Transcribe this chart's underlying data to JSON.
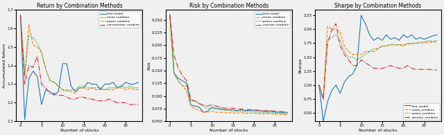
{
  "title1": "Return by Combination Methods",
  "title2": "Risk by Combination Methods",
  "title3": "Sharpe by Combination Methods",
  "xlabel": "Number of stocks",
  "ylabel1": "Accumulated Return",
  "ylabel2": "Risk",
  "ylabel3": "Sharpe",
  "legend1": [
    "first model",
    "mean combine",
    "power combine",
    "concatenate combine"
  ],
  "legend2": [
    "first model",
    "mean combine",
    "power combine",
    "concate combine"
  ],
  "legend3": [
    "first_model",
    "mean_combine",
    "power_combine",
    "concate_combine"
  ],
  "colors": [
    "#1f77b4",
    "#ff7f0e",
    "#2ca02c",
    "#d62728"
  ],
  "x": [
    0,
    1,
    2,
    3,
    4,
    5,
    6,
    7,
    8,
    9,
    10,
    11,
    12,
    13,
    14,
    15,
    16,
    17,
    18,
    19,
    20,
    21,
    22,
    23,
    24,
    25,
    26,
    27,
    28
  ],
  "return_first": [
    1.67,
    1.11,
    1.33,
    1.37,
    1.34,
    1.19,
    1.27,
    1.26,
    1.24,
    1.26,
    1.41,
    1.41,
    1.29,
    1.26,
    1.28,
    1.28,
    1.31,
    1.3,
    1.3,
    1.27,
    1.3,
    1.3,
    1.31,
    1.28,
    1.29,
    1.31,
    1.3,
    1.3,
    1.31
  ],
  "return_mean": [
    1.67,
    1.35,
    1.62,
    1.51,
    1.5,
    1.47,
    1.38,
    1.32,
    1.31,
    1.29,
    1.27,
    1.27,
    1.26,
    1.25,
    1.28,
    1.28,
    1.27,
    1.28,
    1.27,
    1.27,
    1.27,
    1.27,
    1.27,
    1.28,
    1.28,
    1.27,
    1.28,
    1.27,
    1.27
  ],
  "return_power": [
    1.67,
    1.35,
    1.56,
    1.55,
    1.52,
    1.47,
    1.38,
    1.32,
    1.31,
    1.29,
    1.27,
    1.26,
    1.27,
    1.27,
    1.29,
    1.29,
    1.28,
    1.28,
    1.28,
    1.28,
    1.27,
    1.28,
    1.28,
    1.28,
    1.29,
    1.28,
    1.29,
    1.28,
    1.28
  ],
  "return_concat": [
    1.67,
    1.3,
    1.4,
    1.39,
    1.45,
    1.3,
    1.28,
    1.25,
    1.25,
    1.24,
    1.24,
    1.23,
    1.22,
    1.22,
    1.23,
    1.23,
    1.22,
    1.22,
    1.21,
    1.21,
    1.21,
    1.22,
    1.21,
    1.2,
    1.2,
    1.2,
    1.19,
    1.19,
    1.19
  ],
  "risk_first": [
    0.26,
    0.145,
    0.135,
    0.13,
    0.125,
    0.082,
    0.08,
    0.078,
    0.068,
    0.07,
    0.078,
    0.075,
    0.075,
    0.073,
    0.073,
    0.073,
    0.071,
    0.073,
    0.071,
    0.072,
    0.071,
    0.071,
    0.07,
    0.069,
    0.07,
    0.068,
    0.068,
    0.067,
    0.067
  ],
  "risk_mean": [
    0.26,
    0.145,
    0.13,
    0.12,
    0.11,
    0.08,
    0.075,
    0.072,
    0.068,
    0.068,
    0.07,
    0.068,
    0.068,
    0.067,
    0.067,
    0.067,
    0.066,
    0.067,
    0.066,
    0.066,
    0.066,
    0.065,
    0.065,
    0.065,
    0.065,
    0.064,
    0.064,
    0.063,
    0.063
  ],
  "risk_power": [
    0.26,
    0.145,
    0.13,
    0.12,
    0.12,
    0.09,
    0.09,
    0.085,
    0.08,
    0.075,
    0.075,
    0.075,
    0.073,
    0.072,
    0.072,
    0.07,
    0.07,
    0.07,
    0.069,
    0.069,
    0.068,
    0.068,
    0.067,
    0.067,
    0.067,
    0.066,
    0.066,
    0.065,
    0.065
  ],
  "risk_concat": [
    0.26,
    0.18,
    0.155,
    0.14,
    0.13,
    0.093,
    0.09,
    0.085,
    0.082,
    0.08,
    0.083,
    0.08,
    0.078,
    0.076,
    0.076,
    0.076,
    0.075,
    0.074,
    0.073,
    0.073,
    0.073,
    0.072,
    0.071,
    0.071,
    0.071,
    0.07,
    0.07,
    0.069,
    0.069
  ],
  "sharpe_first": [
    1.0,
    0.35,
    0.7,
    0.9,
    1.0,
    0.85,
    1.05,
    1.15,
    1.2,
    1.35,
    2.25,
    2.1,
    1.9,
    1.8,
    1.85,
    1.8,
    1.9,
    1.82,
    1.85,
    1.8,
    1.9,
    1.85,
    1.9,
    1.82,
    1.85,
    1.82,
    1.85,
    1.88,
    1.9
  ],
  "sharpe_mean": [
    1.0,
    0.75,
    2.05,
    2.0,
    2.0,
    1.95,
    1.7,
    1.6,
    1.55,
    1.55,
    1.55,
    1.6,
    1.6,
    1.6,
    1.65,
    1.7,
    1.7,
    1.73,
    1.72,
    1.72,
    1.72,
    1.73,
    1.74,
    1.75,
    1.75,
    1.75,
    1.77,
    1.77,
    1.77
  ],
  "sharpe_power": [
    1.0,
    0.75,
    1.8,
    1.85,
    1.9,
    1.8,
    1.6,
    1.5,
    1.5,
    1.45,
    1.5,
    1.55,
    1.6,
    1.65,
    1.65,
    1.7,
    1.7,
    1.72,
    1.72,
    1.72,
    1.7,
    1.75,
    1.75,
    1.75,
    1.77,
    1.77,
    1.8,
    1.78,
    1.8
  ],
  "sharpe_concat": [
    1.0,
    0.75,
    1.75,
    1.98,
    2.1,
    1.7,
    1.55,
    1.45,
    1.35,
    1.35,
    1.45,
    1.4,
    1.35,
    1.3,
    1.3,
    1.3,
    1.32,
    1.35,
    1.32,
    1.3,
    1.3,
    1.35,
    1.3,
    1.28,
    1.28,
    1.28,
    1.28,
    1.27,
    1.27
  ],
  "return_ylim": [
    1.1,
    1.7
  ],
  "risk_ylim": [
    0.05,
    0.27
  ],
  "sharpe_ylim": [
    0.35,
    2.35
  ],
  "bg_color": "#f0f0f0"
}
